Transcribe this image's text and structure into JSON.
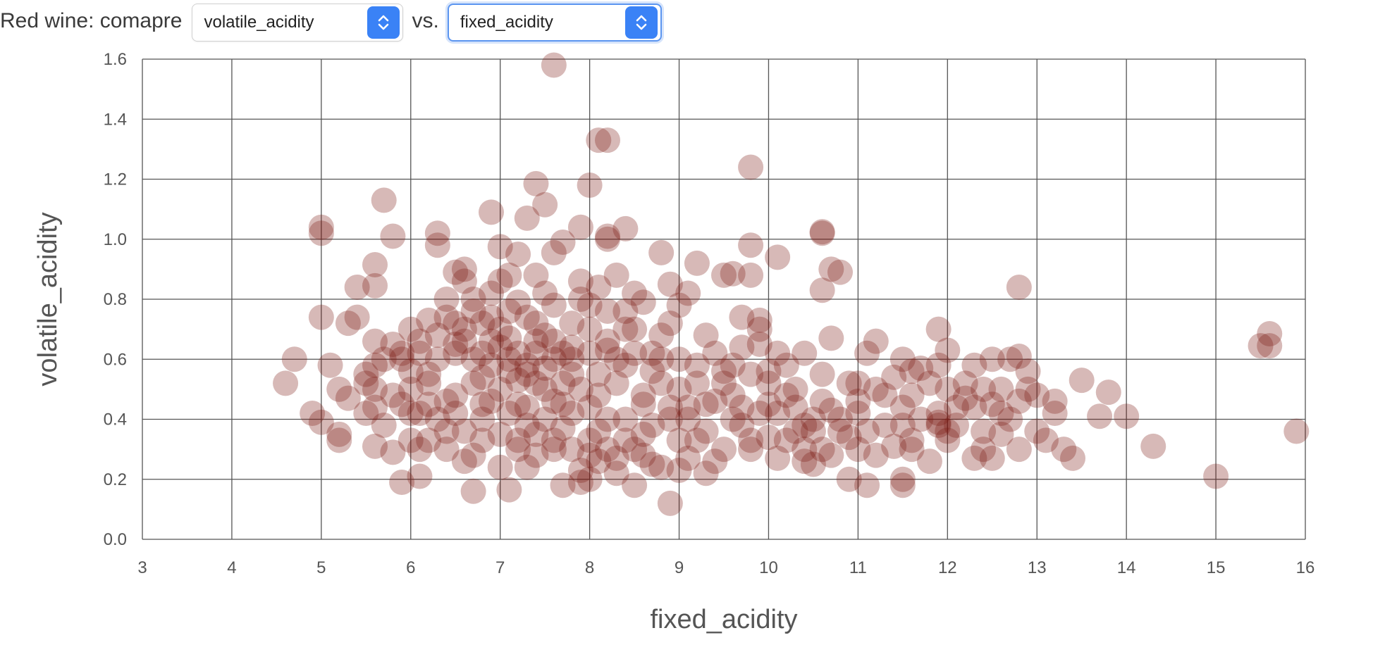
{
  "controls": {
    "prefix": "Red wine: comapre",
    "y_select": {
      "value": "volatile_acidity"
    },
    "vs": "vs.",
    "x_select": {
      "value": "fixed_acidity"
    }
  },
  "colors": {
    "point": "#7b1711",
    "arrow_bg": "#3a82f6",
    "focus": "#5b95f0"
  },
  "icons": {
    "select_arrow": "chevron-up-down-icon"
  },
  "chart_data": {
    "type": "scatter",
    "xlabel": "fixed_acidity",
    "ylabel": "volatile_acidity",
    "xlim": [
      3,
      16
    ],
    "ylim": [
      0,
      1.6
    ],
    "xticks": [
      3,
      4,
      5,
      6,
      7,
      8,
      9,
      10,
      11,
      12,
      13,
      14,
      15,
      16
    ],
    "yticks": [
      "0.0",
      "0.2",
      "0.4",
      "0.6",
      "0.8",
      "1.0",
      "1.2",
      "1.4",
      "1.6"
    ],
    "grid": true,
    "point_color": "#7b1711",
    "point_opacity": 0.3,
    "points": [
      [
        7.6,
        1.58
      ],
      [
        8.1,
        1.33
      ],
      [
        8.2,
        1.33
      ],
      [
        9.8,
        1.24
      ],
      [
        7.4,
        1.185
      ],
      [
        8.0,
        1.18
      ],
      [
        7.5,
        1.115
      ],
      [
        5.7,
        1.13
      ],
      [
        6.9,
        1.09
      ],
      [
        7.3,
        1.07
      ],
      [
        5.0,
        1.04
      ],
      [
        5.0,
        1.02
      ],
      [
        5.8,
        1.01
      ],
      [
        6.3,
        1.02
      ],
      [
        6.3,
        0.98
      ],
      [
        7.9,
        1.04
      ],
      [
        8.4,
        1.035
      ],
      [
        10.6,
        1.025
      ],
      [
        10.6,
        1.02
      ],
      [
        8.2,
        1.0
      ],
      [
        8.2,
        1.01
      ],
      [
        9.8,
        0.98
      ],
      [
        7.0,
        0.975
      ],
      [
        7.7,
        0.99
      ],
      [
        7.6,
        0.955
      ],
      [
        8.8,
        0.955
      ],
      [
        10.1,
        0.94
      ],
      [
        9.2,
        0.92
      ],
      [
        10.7,
        0.9
      ],
      [
        10.8,
        0.89
      ],
      [
        10.6,
        0.83
      ],
      [
        12.8,
        0.84
      ],
      [
        5.6,
        0.915
      ],
      [
        5.6,
        0.845
      ],
      [
        5.4,
        0.84
      ],
      [
        6.5,
        0.89
      ],
      [
        6.6,
        0.86
      ],
      [
        7.1,
        0.88
      ],
      [
        8.3,
        0.88
      ],
      [
        9.5,
        0.88
      ],
      [
        9.6,
        0.885
      ],
      [
        9.8,
        0.88
      ],
      [
        5.0,
        0.74
      ],
      [
        5.4,
        0.74
      ],
      [
        5.3,
        0.72
      ],
      [
        5.6,
        0.66
      ],
      [
        6.2,
        0.73
      ],
      [
        6.7,
        0.76
      ],
      [
        7.2,
        0.79
      ],
      [
        8.6,
        0.79
      ],
      [
        9.0,
        0.78
      ],
      [
        9.7,
        0.74
      ],
      [
        10.7,
        0.67
      ],
      [
        11.2,
        0.66
      ],
      [
        11.9,
        0.7
      ],
      [
        12.0,
        0.63
      ],
      [
        15.6,
        0.685
      ],
      [
        15.5,
        0.645
      ],
      [
        15.6,
        0.645
      ],
      [
        12.7,
        0.6
      ],
      [
        12.8,
        0.61
      ],
      [
        12.5,
        0.6
      ],
      [
        11.9,
        0.58
      ],
      [
        11.5,
        0.6
      ],
      [
        11.7,
        0.57
      ],
      [
        4.7,
        0.6
      ],
      [
        4.6,
        0.52
      ],
      [
        5.1,
        0.58
      ],
      [
        5.6,
        0.58
      ],
      [
        5.9,
        0.6
      ],
      [
        5.2,
        0.5
      ],
      [
        5.5,
        0.52
      ],
      [
        5.6,
        0.5
      ],
      [
        6.0,
        0.5
      ],
      [
        4.9,
        0.42
      ],
      [
        5.0,
        0.39
      ],
      [
        5.3,
        0.47
      ],
      [
        5.5,
        0.42
      ],
      [
        5.8,
        0.48
      ],
      [
        5.2,
        0.35
      ],
      [
        5.2,
        0.33
      ],
      [
        5.6,
        0.31
      ],
      [
        5.8,
        0.29
      ],
      [
        5.9,
        0.19
      ],
      [
        6.1,
        0.21
      ],
      [
        6.7,
        0.16
      ],
      [
        7.1,
        0.165
      ],
      [
        7.7,
        0.18
      ],
      [
        8.0,
        0.2
      ],
      [
        8.5,
        0.18
      ],
      [
        8.9,
        0.12
      ],
      [
        9.3,
        0.22
      ],
      [
        10.9,
        0.2
      ],
      [
        11.1,
        0.18
      ],
      [
        11.5,
        0.18
      ],
      [
        11.5,
        0.2
      ],
      [
        12.3,
        0.27
      ],
      [
        12.5,
        0.27
      ],
      [
        12.8,
        0.3
      ],
      [
        13.3,
        0.3
      ],
      [
        13.4,
        0.27
      ],
      [
        13.7,
        0.41
      ],
      [
        14.0,
        0.41
      ],
      [
        14.3,
        0.31
      ],
      [
        15.0,
        0.21
      ],
      [
        15.9,
        0.36
      ],
      [
        13.8,
        0.49
      ],
      [
        13.5,
        0.53
      ],
      [
        13.2,
        0.46
      ],
      [
        13.0,
        0.48
      ],
      [
        12.9,
        0.5
      ],
      [
        12.4,
        0.5
      ],
      [
        12.2,
        0.47
      ],
      [
        11.9,
        0.39
      ],
      [
        11.9,
        0.38
      ],
      [
        11.6,
        0.48
      ],
      [
        11.2,
        0.5
      ],
      [
        10.9,
        0.52
      ],
      [
        10.5,
        0.25
      ],
      [
        10.4,
        0.26
      ],
      [
        10.2,
        0.33
      ],
      [
        10.0,
        0.45
      ],
      [
        10.0,
        0.56
      ],
      [
        9.9,
        0.7
      ],
      [
        9.9,
        0.73
      ],
      [
        9.6,
        0.58
      ],
      [
        9.3,
        0.45
      ],
      [
        9.1,
        0.4
      ],
      [
        9.0,
        0.23
      ],
      [
        8.7,
        0.25
      ],
      [
        8.6,
        0.48
      ],
      [
        8.5,
        0.7
      ],
      [
        8.3,
        0.27
      ],
      [
        8.2,
        0.3
      ],
      [
        8.1,
        0.36
      ],
      [
        7.9,
        0.19
      ],
      [
        7.8,
        0.3
      ],
      [
        7.4,
        0.28
      ],
      [
        7.2,
        0.3
      ],
      [
        7.0,
        0.24
      ],
      [
        6.7,
        0.28
      ],
      [
        6.6,
        0.36
      ],
      [
        6.4,
        0.36
      ],
      [
        6.2,
        0.33
      ],
      [
        6.1,
        0.42
      ],
      [
        6.3,
        0.6
      ],
      [
        6.5,
        0.65
      ],
      [
        6.8,
        0.62
      ],
      [
        7.1,
        0.67
      ],
      [
        7.4,
        0.72
      ],
      [
        7.8,
        0.55
      ],
      [
        8.2,
        0.63
      ],
      [
        8.4,
        0.58
      ],
      [
        8.7,
        0.62
      ],
      [
        9.0,
        0.6
      ],
      [
        9.5,
        0.52
      ],
      [
        10.3,
        0.5
      ],
      [
        10.7,
        0.43
      ],
      [
        11.0,
        0.42
      ],
      [
        11.3,
        0.38
      ],
      [
        11.6,
        0.33
      ],
      [
        12.1,
        0.38
      ],
      [
        12.6,
        0.42
      ],
      [
        13.0,
        0.36
      ],
      [
        7.0,
        0.5
      ],
      [
        7.2,
        0.45
      ],
      [
        7.5,
        0.4
      ],
      [
        7.3,
        0.55
      ],
      [
        7.6,
        0.6
      ],
      [
        7.9,
        0.5
      ],
      [
        8.0,
        0.62
      ],
      [
        6.9,
        0.58
      ],
      [
        6.8,
        0.45
      ],
      [
        7.7,
        0.45
      ],
      [
        8.1,
        0.48
      ],
      [
        8.4,
        0.4
      ],
      [
        8.8,
        0.52
      ],
      [
        9.2,
        0.58
      ],
      [
        9.4,
        0.46
      ],
      [
        9.7,
        0.38
      ],
      [
        10.1,
        0.42
      ],
      [
        10.4,
        0.38
      ],
      [
        10.8,
        0.36
      ],
      [
        6.6,
        0.7
      ],
      [
        6.9,
        0.82
      ],
      [
        7.5,
        0.68
      ],
      [
        8.2,
        0.76
      ],
      [
        8.8,
        0.68
      ],
      [
        6.2,
        0.55
      ],
      [
        6.0,
        0.42
      ],
      [
        6.4,
        0.46
      ],
      [
        7.3,
        0.38
      ],
      [
        7.8,
        0.42
      ],
      [
        8.6,
        0.35
      ],
      [
        9.0,
        0.33
      ],
      [
        9.8,
        0.3
      ],
      [
        10.6,
        0.3
      ],
      [
        11.2,
        0.28
      ],
      [
        11.8,
        0.26
      ],
      [
        12.4,
        0.3
      ],
      [
        7.1,
        0.6
      ],
      [
        7.4,
        0.52
      ],
      [
        7.7,
        0.62
      ],
      [
        8.3,
        0.52
      ],
      [
        8.9,
        0.44
      ],
      [
        9.6,
        0.4
      ],
      [
        10.2,
        0.48
      ],
      [
        11.0,
        0.46
      ],
      [
        11.5,
        0.44
      ],
      [
        12.0,
        0.5
      ],
      [
        12.5,
        0.45
      ],
      [
        6.7,
        0.52
      ],
      [
        6.5,
        0.48
      ],
      [
        6.3,
        0.4
      ],
      [
        7.0,
        0.35
      ],
      [
        7.6,
        0.33
      ],
      [
        8.0,
        0.28
      ],
      [
        8.5,
        0.3
      ],
      [
        9.1,
        0.27
      ],
      [
        9.5,
        0.3
      ],
      [
        10.0,
        0.34
      ],
      [
        10.5,
        0.36
      ],
      [
        7.2,
        0.62
      ],
      [
        7.6,
        0.66
      ],
      [
        8.0,
        0.7
      ],
      [
        8.3,
        0.6
      ],
      [
        8.7,
        0.56
      ],
      [
        9.2,
        0.52
      ],
      [
        7.3,
        0.58
      ],
      [
        6.9,
        0.66
      ],
      [
        7.8,
        0.72
      ],
      [
        8.1,
        0.84
      ],
      [
        8.9,
        0.85
      ],
      [
        9.1,
        0.82
      ],
      [
        5.8,
        0.65
      ],
      [
        6.0,
        0.7
      ],
      [
        6.4,
        0.8
      ],
      [
        6.6,
        0.9
      ],
      [
        7.2,
        0.95
      ],
      [
        9.9,
        0.65
      ],
      [
        10.4,
        0.62
      ],
      [
        11.1,
        0.62
      ],
      [
        11.6,
        0.56
      ],
      [
        12.3,
        0.58
      ],
      [
        12.9,
        0.56
      ],
      [
        13.2,
        0.42
      ],
      [
        12.8,
        0.46
      ],
      [
        12.1,
        0.44
      ],
      [
        11.7,
        0.4
      ],
      [
        11.3,
        0.48
      ],
      [
        10.9,
        0.34
      ],
      [
        10.6,
        0.46
      ],
      [
        10.2,
        0.58
      ],
      [
        9.8,
        0.55
      ],
      [
        9.4,
        0.62
      ],
      [
        8.9,
        0.72
      ],
      [
        8.5,
        0.82
      ],
      [
        7.9,
        0.86
      ],
      [
        7.5,
        0.82
      ],
      [
        7.1,
        0.76
      ],
      [
        6.8,
        0.72
      ],
      [
        6.5,
        0.62
      ],
      [
        6.2,
        0.52
      ],
      [
        5.9,
        0.45
      ],
      [
        5.7,
        0.38
      ],
      [
        6.1,
        0.3
      ],
      [
        6.6,
        0.26
      ],
      [
        7.3,
        0.24
      ],
      [
        7.9,
        0.23
      ],
      [
        8.3,
        0.22
      ],
      [
        8.8,
        0.24
      ],
      [
        9.4,
        0.26
      ],
      [
        10.1,
        0.27
      ],
      [
        10.7,
        0.28
      ],
      [
        11.4,
        0.31
      ],
      [
        12.0,
        0.33
      ],
      [
        12.6,
        0.35
      ],
      [
        13.1,
        0.33
      ],
      [
        7.5,
        0.5
      ],
      [
        7.7,
        0.52
      ],
      [
        7.4,
        0.62
      ],
      [
        7.0,
        0.64
      ],
      [
        7.2,
        0.53
      ],
      [
        6.9,
        0.46
      ],
      [
        7.3,
        0.44
      ],
      [
        7.6,
        0.46
      ],
      [
        8.0,
        0.44
      ],
      [
        8.2,
        0.4
      ],
      [
        8.1,
        0.55
      ],
      [
        7.8,
        0.6
      ],
      [
        7.5,
        0.57
      ],
      [
        7.1,
        0.56
      ],
      [
        6.8,
        0.54
      ],
      [
        6.7,
        0.6
      ],
      [
        6.6,
        0.66
      ],
      [
        7.0,
        0.7
      ],
      [
        7.4,
        0.66
      ],
      [
        7.8,
        0.64
      ],
      [
        8.2,
        0.66
      ],
      [
        8.5,
        0.62
      ],
      [
        8.6,
        0.45
      ],
      [
        8.9,
        0.4
      ],
      [
        9.3,
        0.36
      ],
      [
        9.7,
        0.44
      ],
      [
        10.0,
        0.52
      ],
      [
        10.3,
        0.44
      ],
      [
        10.5,
        0.4
      ],
      [
        9.0,
        0.5
      ],
      [
        9.5,
        0.56
      ],
      [
        8.4,
        0.7
      ],
      [
        8.0,
        0.78
      ],
      [
        7.6,
        0.78
      ],
      [
        7.3,
        0.74
      ],
      [
        6.9,
        0.74
      ],
      [
        6.5,
        0.72
      ],
      [
        6.3,
        0.68
      ],
      [
        6.1,
        0.62
      ],
      [
        6.0,
        0.56
      ],
      [
        5.9,
        0.62
      ],
      [
        6.2,
        0.45
      ],
      [
        6.5,
        0.42
      ],
      [
        6.8,
        0.4
      ],
      [
        7.1,
        0.42
      ],
      [
        7.4,
        0.35
      ],
      [
        7.7,
        0.37
      ],
      [
        8.0,
        0.33
      ],
      [
        8.4,
        0.33
      ],
      [
        8.7,
        0.38
      ],
      [
        9.1,
        0.44
      ],
      [
        9.6,
        0.48
      ],
      [
        9.9,
        0.42
      ],
      [
        10.3,
        0.36
      ],
      [
        10.8,
        0.4
      ],
      [
        11.1,
        0.36
      ],
      [
        11.5,
        0.38
      ],
      [
        11.9,
        0.42
      ],
      [
        12.3,
        0.44
      ],
      [
        12.7,
        0.4
      ],
      [
        12.4,
        0.36
      ],
      [
        12.0,
        0.36
      ],
      [
        11.6,
        0.3
      ],
      [
        11.0,
        0.3
      ],
      [
        10.4,
        0.3
      ],
      [
        9.8,
        0.33
      ],
      [
        9.2,
        0.33
      ],
      [
        8.6,
        0.28
      ],
      [
        8.1,
        0.26
      ],
      [
        7.6,
        0.3
      ],
      [
        7.2,
        0.33
      ],
      [
        6.8,
        0.33
      ],
      [
        6.4,
        0.3
      ],
      [
        6.0,
        0.33
      ],
      [
        5.6,
        0.44
      ],
      [
        5.5,
        0.55
      ],
      [
        5.7,
        0.6
      ],
      [
        6.1,
        0.66
      ],
      [
        6.4,
        0.74
      ],
      [
        6.7,
        0.8
      ],
      [
        7.0,
        0.86
      ],
      [
        7.4,
        0.88
      ],
      [
        7.9,
        0.8
      ],
      [
        8.4,
        0.76
      ],
      [
        8.8,
        0.6
      ],
      [
        9.3,
        0.68
      ],
      [
        9.7,
        0.64
      ],
      [
        10.1,
        0.62
      ],
      [
        10.6,
        0.55
      ],
      [
        11.0,
        0.52
      ],
      [
        11.4,
        0.54
      ],
      [
        11.8,
        0.52
      ],
      [
        12.2,
        0.52
      ],
      [
        12.6,
        0.5
      ]
    ]
  }
}
